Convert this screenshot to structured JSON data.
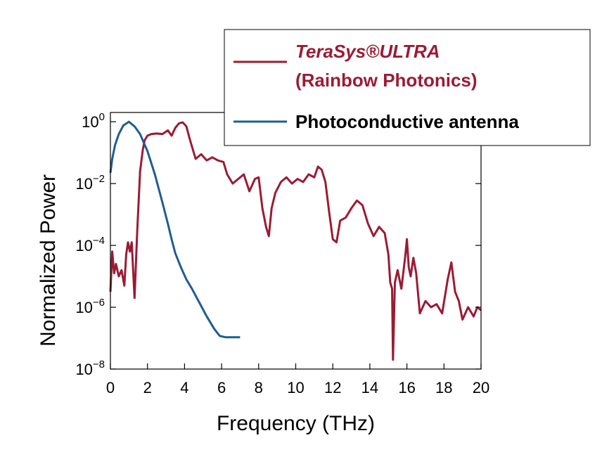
{
  "chart_data": {
    "type": "line",
    "title": "",
    "xlabel": "Frequency (THz)",
    "ylabel": "Normalized Power",
    "xlim": [
      0,
      20
    ],
    "ylim_log10": [
      -8,
      0.3
    ],
    "y_scale": "log",
    "x_ticks": [
      0,
      2,
      4,
      6,
      8,
      10,
      12,
      14,
      16,
      18,
      20
    ],
    "y_ticks": [
      {
        "base": "10",
        "exp": "0",
        "log10": 0
      },
      {
        "base": "10",
        "exp": "−2",
        "log10": -2
      },
      {
        "base": "10",
        "exp": "−4",
        "log10": -4
      },
      {
        "base": "10",
        "exp": "−6",
        "log10": -6
      },
      {
        "base": "10",
        "exp": "−8",
        "log10": -8
      }
    ],
    "legend_position": "top-right",
    "series": [
      {
        "name": "TeraSys®ULTRA",
        "name_line2": "(Rainbow Photonics)",
        "color": "#9b1b35",
        "x": [
          0.0,
          0.1,
          0.2,
          0.3,
          0.45,
          0.6,
          0.75,
          0.85,
          0.95,
          1.05,
          1.15,
          1.3,
          1.45,
          1.6,
          1.75,
          1.85,
          2.0,
          2.2,
          2.5,
          2.8,
          3.1,
          3.3,
          3.5,
          3.7,
          3.9,
          4.1,
          4.3,
          4.6,
          4.9,
          5.2,
          5.5,
          5.8,
          6.1,
          6.3,
          6.6,
          6.9,
          7.2,
          7.5,
          7.8,
          8.0,
          8.2,
          8.4,
          8.55,
          8.7,
          8.9,
          9.2,
          9.5,
          9.8,
          10.1,
          10.4,
          10.7,
          11.0,
          11.2,
          11.4,
          11.6,
          11.8,
          12.0,
          12.2,
          12.4,
          12.7,
          13.0,
          13.3,
          13.6,
          13.9,
          14.2,
          14.5,
          14.8,
          15.0,
          15.1,
          15.2,
          15.25,
          15.35,
          15.5,
          15.7,
          15.9,
          16.0,
          16.1,
          16.2,
          16.35,
          16.5,
          16.7,
          17.0,
          17.3,
          17.6,
          17.9,
          18.2,
          18.4,
          18.6,
          18.8,
          19.0,
          19.3,
          19.6,
          19.8,
          20.0
        ],
        "log10": [
          -5.5,
          -4.2,
          -4.9,
          -4.6,
          -5.0,
          -4.8,
          -5.3,
          -4.3,
          -3.9,
          -4.2,
          -3.9,
          -5.7,
          -3.5,
          -1.6,
          -0.9,
          -0.6,
          -0.45,
          -0.4,
          -0.38,
          -0.4,
          -0.28,
          -0.45,
          -0.2,
          -0.05,
          -0.02,
          -0.15,
          -0.6,
          -1.2,
          -1.05,
          -1.25,
          -1.15,
          -1.25,
          -1.3,
          -1.7,
          -2.0,
          -1.85,
          -1.7,
          -2.25,
          -1.85,
          -1.8,
          -2.8,
          -3.4,
          -3.7,
          -2.8,
          -2.3,
          -1.95,
          -1.8,
          -2.0,
          -1.85,
          -1.95,
          -1.7,
          -1.8,
          -1.45,
          -1.55,
          -1.95,
          -2.9,
          -3.8,
          -3.9,
          -3.2,
          -3.1,
          -2.8,
          -2.55,
          -2.7,
          -3.3,
          -3.7,
          -3.4,
          -3.6,
          -4.3,
          -5.2,
          -5.4,
          -7.7,
          -5.2,
          -4.8,
          -5.4,
          -4.4,
          -3.8,
          -4.7,
          -5.0,
          -4.4,
          -4.9,
          -6.2,
          -5.8,
          -6.0,
          -5.9,
          -6.2,
          -5.1,
          -4.55,
          -5.5,
          -5.8,
          -6.4,
          -6.0,
          -6.3,
          -6.0,
          -6.1
        ]
      },
      {
        "name": "Photoconductive antenna",
        "color": "#1f5d96",
        "x": [
          0.0,
          0.1,
          0.25,
          0.45,
          0.7,
          1.0,
          1.3,
          1.6,
          2.0,
          2.4,
          2.8,
          3.1,
          3.3,
          3.5,
          3.8,
          4.1,
          4.4,
          4.8,
          5.2,
          5.6,
          5.9,
          6.2,
          6.6,
          7.0
        ],
        "log10": [
          -1.65,
          -1.2,
          -0.75,
          -0.4,
          -0.12,
          0.0,
          -0.15,
          -0.4,
          -0.95,
          -1.7,
          -2.6,
          -3.3,
          -3.8,
          -4.25,
          -4.7,
          -5.1,
          -5.4,
          -5.85,
          -6.3,
          -6.7,
          -6.93,
          -6.97,
          -6.97,
          -6.97
        ]
      }
    ]
  }
}
